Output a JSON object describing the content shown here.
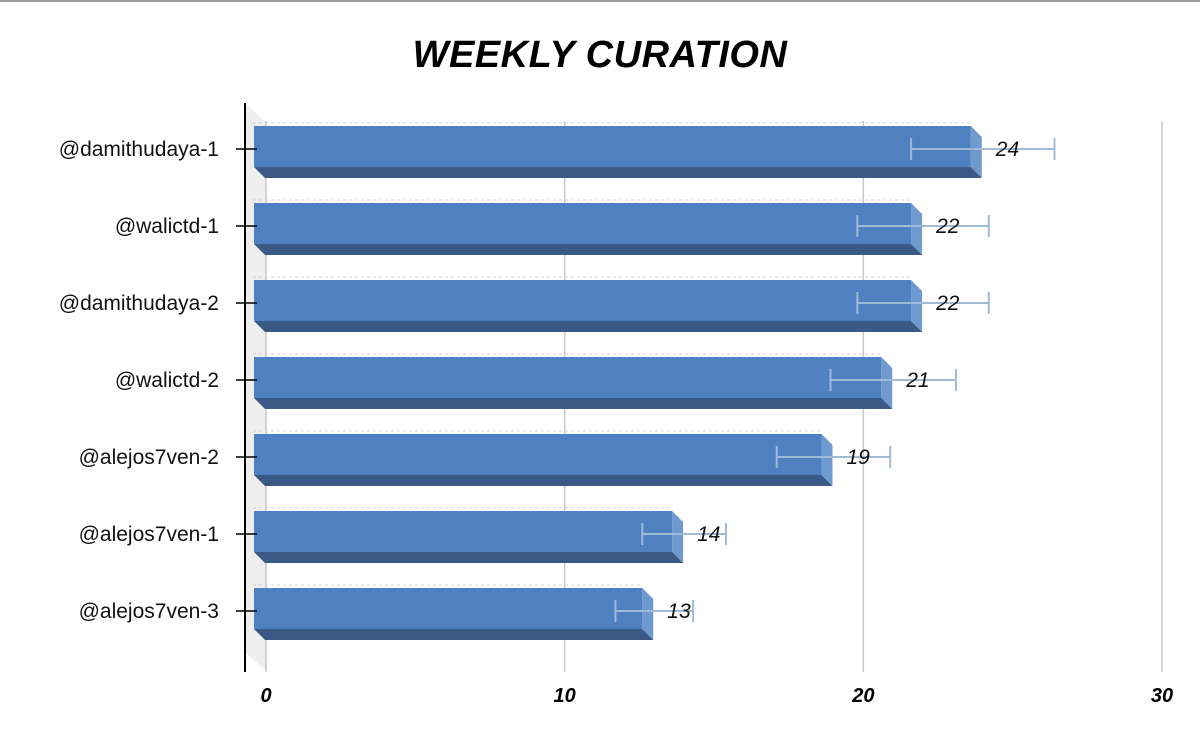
{
  "chart_data": {
    "type": "bar",
    "orientation": "horizontal",
    "title": "WEEKLY CURATION",
    "categories": [
      "@damithudaya-1",
      "@walictd-1",
      "@damithudaya-2",
      "@walictd-2",
      "@alejos7ven-2",
      "@alejos7ven-1",
      "@alejos7ven-3"
    ],
    "values": [
      24,
      22,
      22,
      21,
      19,
      14,
      13
    ],
    "error_low": [
      21.6,
      19.8,
      19.8,
      18.9,
      17.1,
      12.6,
      11.7
    ],
    "error_high": [
      26.4,
      24.2,
      24.2,
      23.1,
      20.9,
      15.4,
      14.3
    ],
    "data_labels": [
      "24",
      "22",
      "22",
      "21",
      "19",
      "14",
      "13"
    ],
    "xlim": [
      0,
      30
    ],
    "x_ticks": [
      "0",
      "10",
      "20",
      "30"
    ],
    "xlabel": "",
    "ylabel": "",
    "grid": "vertical",
    "colors": {
      "bar": "#4f81c2",
      "bar_dark": "#3a5a85",
      "bar_side": "#6e9ad0",
      "error": "#9fbad6",
      "grid": "#c8c8c8"
    }
  }
}
